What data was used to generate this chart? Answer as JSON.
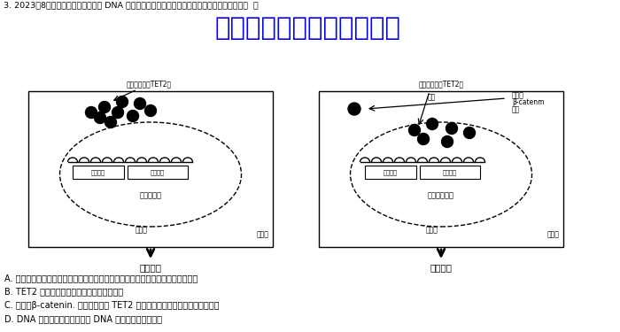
{
  "title_line1": "3. 2023年8月我国科研人员发现肠癌 DNA 甲基化调控的新机制，如图所示，下列叙述正确的是（  ）",
  "watermark": "微信公众号关注：趣找答案",
  "left_label_top": "生甲基化酶（TET2）",
  "right_label_top": "去甲基化酶（TET2）",
  "left_box_label": "高度甲基化",
  "right_box_label": "甲基化水平低",
  "left_nucleus_label": "细胞核",
  "left_cytoplasm_label": "细胞质",
  "right_nucleus_label": "细胞核",
  "right_cytoplasm_label": "细胞质",
  "left_bottom_label": "肿瘼恶化",
  "right_bottom_label": "肿瘼消退",
  "right_top_label1": "激活的",
  "right_top_label2": "β-catenm",
  "right_top_label3": "蛋白",
  "right_arrow_label": "促进",
  "left_gene_label1": "上游序列",
  "left_gene_label2": "抑癌基因",
  "right_gene_label1": "上游序列",
  "right_gene_label2": "抑癌基因",
  "option_A": "A. 多个原癌和抑癌基因突变导致细胞周期变短、细胞表面糖蛋白变少、酶活性下降",
  "option_B": "B. TET2 从细胞质进入细胞核不需要消耗能量",
  "option_C": "C. 激活的β-catenin. 蛋白能够促进 TET2 进入细胞核并催化抑癌基因去甲基化",
  "option_D": "D. DNA 分子的甲基化直接影响 DNA 复制时的碱基互补对",
  "bg_color": "#ffffff",
  "text_color": "#000000",
  "watermark_color": "#0000ff"
}
